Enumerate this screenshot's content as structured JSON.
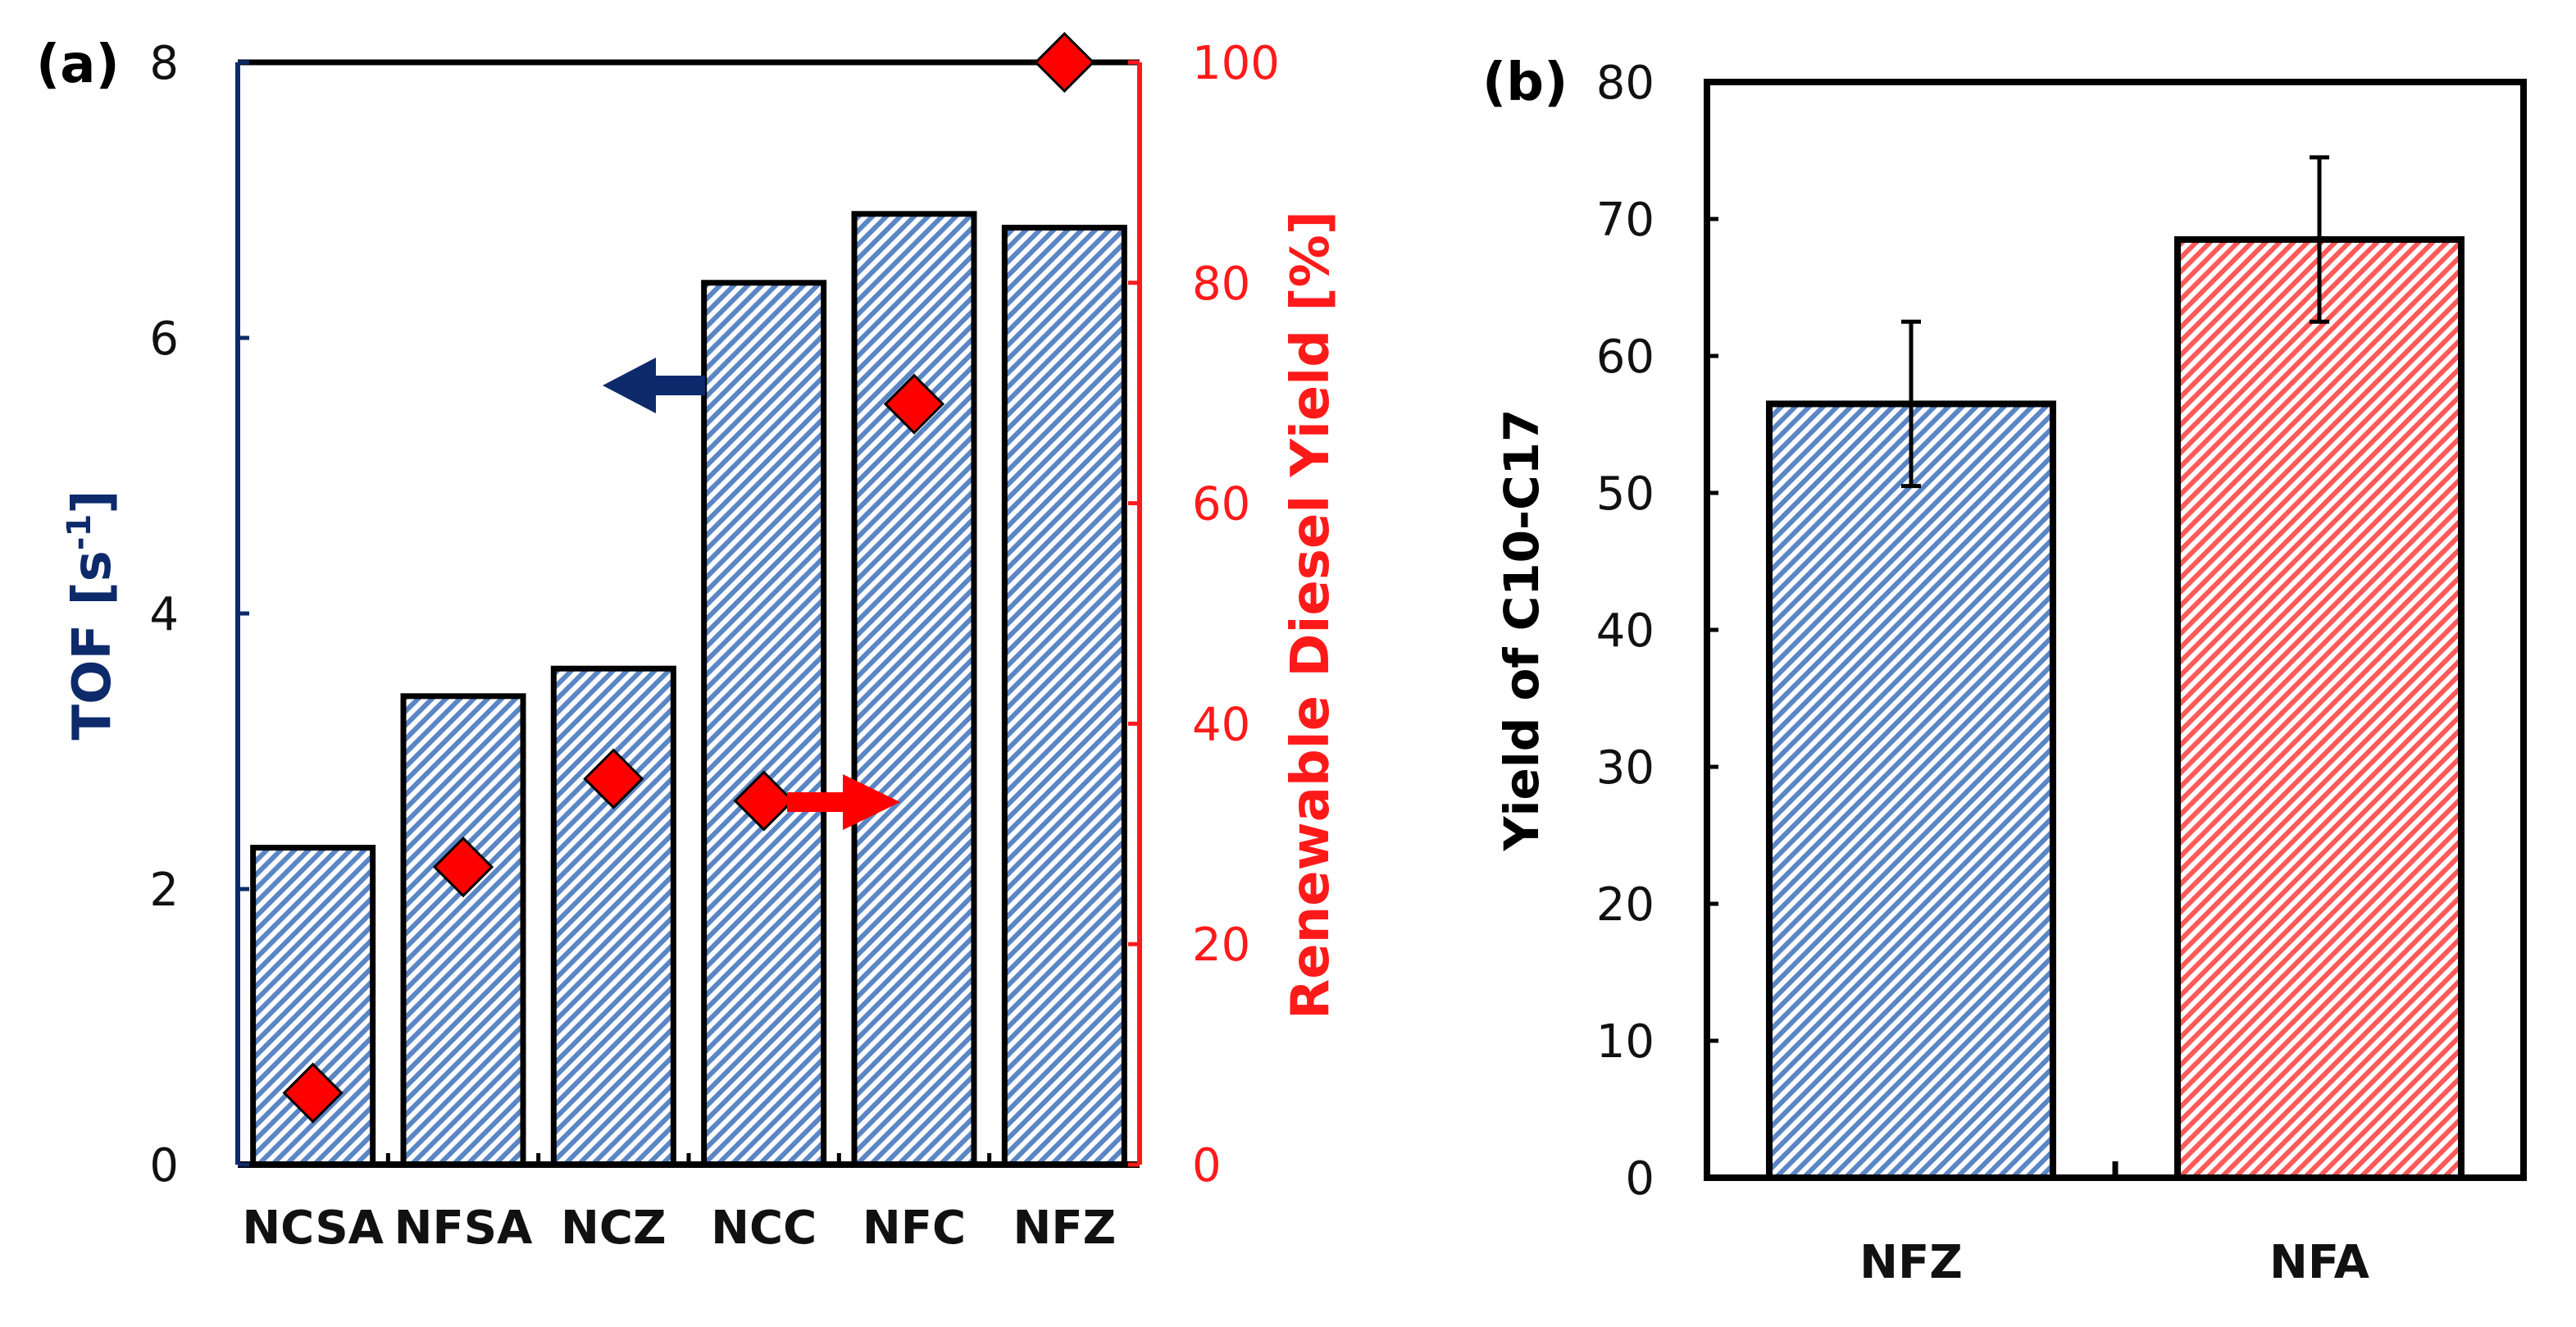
{
  "colors": {
    "tof_axis": "#0d2a6b",
    "yield_axis": "#ff1a1a",
    "blue_fill": "#5b86c5",
    "red_fill": "#ff5a5a",
    "marker": "#ff0000",
    "frame": "#000000"
  },
  "chart_data": [
    {
      "panel_label": "(a)",
      "type": "bar",
      "categories": [
        "NCSA",
        "NFSA",
        "NCZ",
        "NCC",
        "NFC",
        "NFZ"
      ],
      "series": [
        {
          "name": "TOF",
          "axis": "left",
          "kind": "bar",
          "values": [
            2.3,
            3.4,
            3.6,
            6.4,
            6.9,
            6.8
          ]
        },
        {
          "name": "Renewable Diesel Yield",
          "axis": "right",
          "kind": "diamond",
          "values": [
            6.5,
            27,
            35,
            33,
            69,
            100
          ]
        }
      ],
      "ylabel": "TOF [s",
      "ylabel_sup": "-1",
      "ylabel_end": "]",
      "ylim": [
        0,
        8
      ],
      "yticks": [
        "0",
        "2",
        "4",
        "6",
        "8"
      ],
      "y2label": "Renewable Diesel Yield [%]",
      "y2lim": [
        0,
        100
      ],
      "y2ticks": [
        "0",
        "20",
        "40",
        "60",
        "80",
        "100"
      ],
      "annotations": [
        {
          "type": "arrow",
          "direction": "left",
          "color": "tof_axis",
          "meaning": "bars read on left axis"
        },
        {
          "type": "arrow",
          "direction": "right",
          "color": "yield_axis",
          "meaning": "diamonds read on right axis"
        }
      ]
    },
    {
      "panel_label": "(b)",
      "type": "bar",
      "categories": [
        "NFZ",
        "NFA"
      ],
      "values": [
        56.5,
        68.5
      ],
      "error": [
        6.0,
        6.0
      ],
      "ylabel": "Yield of C10-C17",
      "ylim": [
        0,
        80
      ],
      "yticks": [
        "0",
        "10",
        "20",
        "30",
        "40",
        "50",
        "60",
        "70",
        "80"
      ]
    }
  ]
}
